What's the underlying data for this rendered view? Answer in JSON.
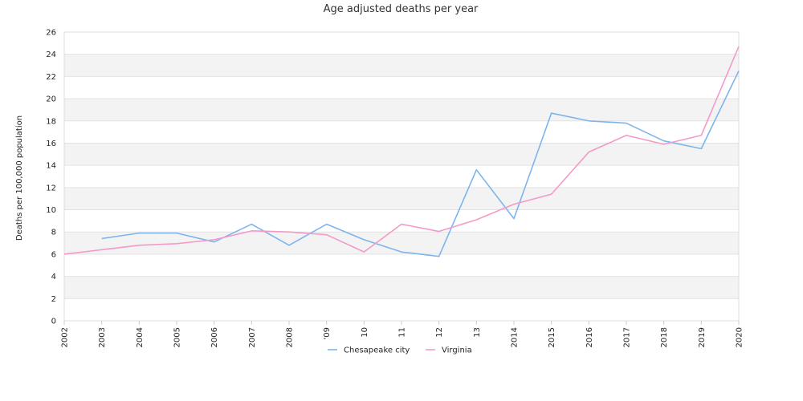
{
  "chart_data": {
    "type": "line",
    "title": "Age adjusted deaths per year",
    "ylabel": "Deaths per 100,000 population",
    "xlabel": "",
    "x": [
      "2002",
      "2003",
      "2004",
      "2005",
      "2006",
      "2007",
      "2008",
      "2009",
      "2010",
      "2011",
      "2012",
      "2013",
      "2014",
      "2015",
      "2016",
      "2017",
      "2018",
      "2019",
      "2020"
    ],
    "x_tick_labels": [
      "2002",
      "2003",
      "2004",
      "2005",
      "2006",
      "2007",
      "2008",
      "'09",
      "10",
      "11",
      "12",
      "13",
      "2014",
      "2015",
      "2016",
      "2017",
      "2018",
      "2019",
      "2020"
    ],
    "ylim": [
      0,
      26
    ],
    "yticks": [
      0,
      2,
      4,
      6,
      8,
      10,
      12,
      14,
      16,
      18,
      20,
      22,
      24,
      26
    ],
    "grid": "horizontal alternating bands",
    "legend_position": "bottom-center",
    "series": [
      {
        "name": "Chesapeake city",
        "color": "#7cb5ec",
        "values": [
          null,
          7.4,
          7.9,
          7.9,
          7.1,
          8.7,
          6.8,
          8.7,
          7.3,
          6.2,
          5.8,
          13.6,
          9.2,
          18.7,
          18.0,
          17.8,
          16.2,
          15.5,
          22.5
        ]
      },
      {
        "name": "Virginia",
        "color": "#f39ac7",
        "values": [
          6.0,
          6.4,
          6.8,
          6.95,
          7.3,
          8.1,
          8.0,
          7.75,
          6.2,
          8.7,
          8.05,
          9.1,
          10.5,
          11.4,
          15.2,
          16.7,
          15.9,
          16.7,
          24.7
        ]
      }
    ]
  }
}
